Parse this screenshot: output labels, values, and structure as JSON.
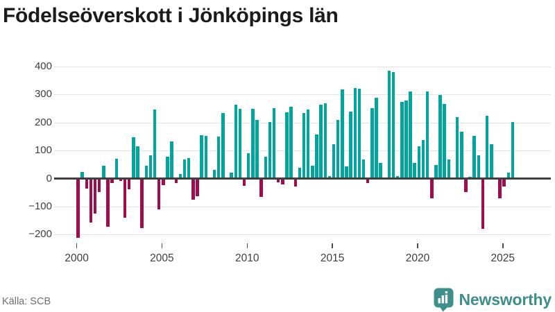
{
  "title": "Födelseöverskott i Jönköpings län",
  "source": "Källa: SCB",
  "branding": {
    "name": "Newsworthy",
    "icon": "bar-chart-pin-icon",
    "color": "#3E8E89"
  },
  "chart_data": {
    "type": "bar",
    "title": "Födelseöverskott i Jönköpings län",
    "period_start": "2000-Q1",
    "period_end": "2025-Q3",
    "periods_per_year": 4,
    "values": [
      -211,
      23,
      -37,
      -156,
      -125,
      -48,
      45,
      -173,
      -16,
      70,
      -8,
      -139,
      -39,
      147,
      114,
      -178,
      46,
      83,
      247,
      -111,
      -24,
      78,
      133,
      -15,
      16,
      68,
      74,
      -75,
      -63,
      154,
      152,
      0,
      30,
      150,
      234,
      0,
      20,
      263,
      248,
      -26,
      90,
      250,
      209,
      -65,
      78,
      201,
      252,
      -14,
      -20,
      236,
      257,
      -29,
      39,
      234,
      247,
      45,
      158,
      263,
      269,
      10,
      123,
      210,
      318,
      43,
      239,
      322,
      320,
      69,
      -16,
      252,
      289,
      56,
      0,
      385,
      381,
      10,
      274,
      278,
      311,
      56,
      116,
      138,
      311,
      -71,
      48,
      299,
      265,
      67,
      0,
      219,
      168,
      -49,
      7,
      152,
      82,
      -179,
      223,
      123,
      0,
      -70,
      -29,
      22,
      203
    ],
    "y_ticks": [
      400,
      300,
      200,
      100,
      0,
      -100,
      -200
    ],
    "y_tick_labels": [
      "400",
      "300",
      "200",
      "100",
      "0",
      "−100",
      "−200"
    ],
    "x_ticks": [
      2000,
      2005,
      2010,
      2015,
      2020,
      2025
    ],
    "x_tick_labels": [
      "2000",
      "2005",
      "2010",
      "2015",
      "2020",
      "2025"
    ],
    "ylim": [
      -230,
      420
    ],
    "grid": true,
    "legend": "none",
    "positive_color": "#00A59B",
    "negative_color": "#A00D4D",
    "xlabel": "",
    "ylabel": ""
  }
}
